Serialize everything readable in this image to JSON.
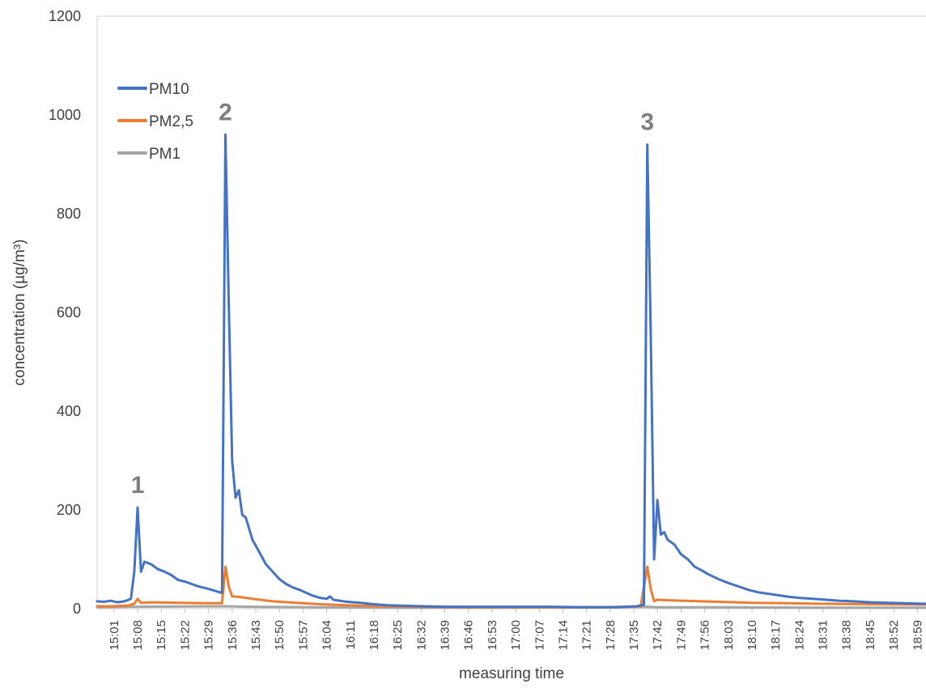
{
  "chart_data": {
    "type": "line",
    "xlabel": "measuring time",
    "ylabel": "concentration (µg/m³)",
    "ylim": [
      0,
      1200
    ],
    "yticks": [
      0,
      200,
      400,
      600,
      800,
      1000,
      1200
    ],
    "xticks": [
      "15:01",
      "15:08",
      "15:15",
      "15:22",
      "15:29",
      "15:36",
      "15:43",
      "15:50",
      "15:57",
      "16:04",
      "16:11",
      "16:18",
      "16:25",
      "16:32",
      "16:39",
      "16:46",
      "16:53",
      "17:00",
      "17:07",
      "17:14",
      "17:21",
      "17:28",
      "17:35",
      "17:42",
      "17:49",
      "17:56",
      "18:03",
      "18:10",
      "18:17",
      "18:24",
      "18:31",
      "18:38",
      "18:45",
      "18:52",
      "18:59"
    ],
    "x_range": [
      "14:56",
      "19:03"
    ],
    "grid": false,
    "legend": "top-left",
    "annotations": [
      {
        "text": "1",
        "x": "15:08"
      },
      {
        "text": "2",
        "x": "15:34"
      },
      {
        "text": "3",
        "x": "17:39"
      }
    ],
    "series": [
      {
        "name": "PM10",
        "color": "#4472c4",
        "points": [
          [
            "14:56",
            15
          ],
          [
            "14:58",
            14
          ],
          [
            "15:00",
            16
          ],
          [
            "15:02",
            13
          ],
          [
            "15:04",
            15
          ],
          [
            "15:05",
            17
          ],
          [
            "15:06",
            20
          ],
          [
            "15:07",
            75
          ],
          [
            "15:08",
            205
          ],
          [
            "15:09",
            75
          ],
          [
            "15:10",
            95
          ],
          [
            "15:12",
            90
          ],
          [
            "15:14",
            80
          ],
          [
            "15:16",
            75
          ],
          [
            "15:18",
            68
          ],
          [
            "15:20",
            58
          ],
          [
            "15:22",
            55
          ],
          [
            "15:24",
            50
          ],
          [
            "15:26",
            45
          ],
          [
            "15:28",
            42
          ],
          [
            "15:30",
            38
          ],
          [
            "15:32",
            34
          ],
          [
            "15:33",
            32
          ],
          [
            "15:34",
            960
          ],
          [
            "15:35",
            620
          ],
          [
            "15:36",
            300
          ],
          [
            "15:37",
            225
          ],
          [
            "15:38",
            240
          ],
          [
            "15:39",
            190
          ],
          [
            "15:40",
            185
          ],
          [
            "15:42",
            140
          ],
          [
            "15:44",
            115
          ],
          [
            "15:46",
            90
          ],
          [
            "15:48",
            75
          ],
          [
            "15:50",
            60
          ],
          [
            "15:52",
            50
          ],
          [
            "15:54",
            43
          ],
          [
            "15:56",
            38
          ],
          [
            "15:58",
            32
          ],
          [
            "16:00",
            26
          ],
          [
            "16:02",
            22
          ],
          [
            "16:04",
            20
          ],
          [
            "16:05",
            25
          ],
          [
            "16:06",
            18
          ],
          [
            "16:10",
            14
          ],
          [
            "16:14",
            12
          ],
          [
            "16:18",
            9
          ],
          [
            "16:22",
            7
          ],
          [
            "16:26",
            6
          ],
          [
            "16:32",
            5
          ],
          [
            "16:40",
            4
          ],
          [
            "16:50",
            4
          ],
          [
            "17:00",
            4
          ],
          [
            "17:10",
            4
          ],
          [
            "17:20",
            3
          ],
          [
            "17:30",
            3
          ],
          [
            "17:36",
            5
          ],
          [
            "17:38",
            8
          ],
          [
            "17:39",
            940
          ],
          [
            "17:40",
            560
          ],
          [
            "17:41",
            100
          ],
          [
            "17:42",
            220
          ],
          [
            "17:43",
            150
          ],
          [
            "17:44",
            155
          ],
          [
            "17:45",
            140
          ],
          [
            "17:47",
            130
          ],
          [
            "17:49",
            110
          ],
          [
            "17:51",
            100
          ],
          [
            "17:53",
            85
          ],
          [
            "17:55",
            78
          ],
          [
            "17:57",
            70
          ],
          [
            "18:00",
            60
          ],
          [
            "18:03",
            52
          ],
          [
            "18:06",
            45
          ],
          [
            "18:09",
            38
          ],
          [
            "18:12",
            33
          ],
          [
            "18:15",
            30
          ],
          [
            "18:18",
            27
          ],
          [
            "18:21",
            24
          ],
          [
            "18:24",
            22
          ],
          [
            "18:28",
            20
          ],
          [
            "18:32",
            18
          ],
          [
            "18:36",
            16
          ],
          [
            "18:40",
            15
          ],
          [
            "18:45",
            13
          ],
          [
            "18:50",
            12
          ],
          [
            "18:55",
            11
          ],
          [
            "19:00",
            10
          ],
          [
            "19:03",
            10
          ]
        ]
      },
      {
        "name": "PM2,5",
        "color": "#ed7d31",
        "points": [
          [
            "14:56",
            5
          ],
          [
            "15:00",
            5
          ],
          [
            "15:05",
            6
          ],
          [
            "15:07",
            10
          ],
          [
            "15:08",
            20
          ],
          [
            "15:09",
            12
          ],
          [
            "15:12",
            13
          ],
          [
            "15:20",
            12
          ],
          [
            "15:30",
            11
          ],
          [
            "15:33",
            11
          ],
          [
            "15:34",
            85
          ],
          [
            "15:35",
            45
          ],
          [
            "15:36",
            25
          ],
          [
            "15:38",
            24
          ],
          [
            "15:42",
            20
          ],
          [
            "15:48",
            15
          ],
          [
            "15:55",
            12
          ],
          [
            "16:02",
            9
          ],
          [
            "16:10",
            7
          ],
          [
            "16:20",
            5
          ],
          [
            "16:30",
            4
          ],
          [
            "16:45",
            3
          ],
          [
            "17:00",
            3
          ],
          [
            "17:20",
            3
          ],
          [
            "17:37",
            4
          ],
          [
            "17:39",
            85
          ],
          [
            "17:40",
            40
          ],
          [
            "17:41",
            15
          ],
          [
            "17:42",
            18
          ],
          [
            "17:45",
            17
          ],
          [
            "17:50",
            16
          ],
          [
            "18:00",
            14
          ],
          [
            "18:10",
            12
          ],
          [
            "18:20",
            11
          ],
          [
            "18:30",
            10
          ],
          [
            "18:45",
            9
          ],
          [
            "19:03",
            8
          ]
        ]
      },
      {
        "name": "PM1",
        "color": "#a5a5a5",
        "points": [
          [
            "14:56",
            3
          ],
          [
            "15:08",
            4
          ],
          [
            "15:34",
            5
          ],
          [
            "15:40",
            4
          ],
          [
            "16:00",
            3
          ],
          [
            "16:30",
            2
          ],
          [
            "17:00",
            2
          ],
          [
            "17:39",
            4
          ],
          [
            "17:42",
            3
          ],
          [
            "18:00",
            3
          ],
          [
            "18:30",
            2
          ],
          [
            "19:03",
            2
          ]
        ]
      }
    ]
  }
}
